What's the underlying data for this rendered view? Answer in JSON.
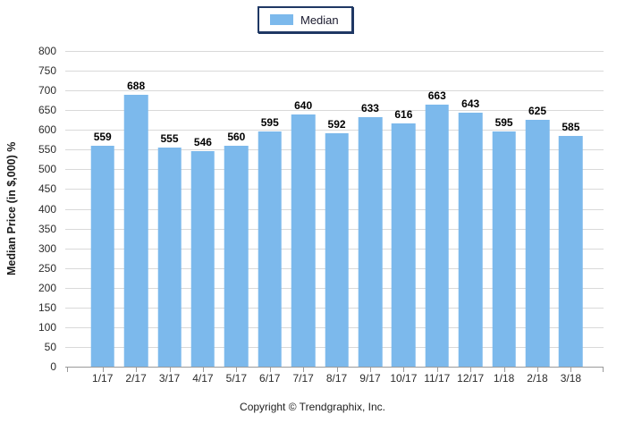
{
  "legend": {
    "label": "Median"
  },
  "footer": {
    "copyright": "Copyright © Trendgraphix, Inc."
  },
  "colors": {
    "bar": "#7CB9EC",
    "grid": "#D9D9D9",
    "axis": "#9A9A9A",
    "legend_border": "#1F3864",
    "tick_text": "#2B2B2B",
    "data_label_text": "#000000"
  },
  "chart_data": {
    "type": "bar",
    "title": "",
    "xlabel": "",
    "ylabel": "Median Price (in $,000) %",
    "categories": [
      "1/17",
      "2/17",
      "3/17",
      "4/17",
      "5/17",
      "6/17",
      "7/17",
      "8/17",
      "9/17",
      "10/17",
      "11/17",
      "12/17",
      "1/18",
      "2/18",
      "3/18"
    ],
    "series": [
      {
        "name": "Median",
        "values": [
          559,
          688,
          555,
          546,
          560,
          595,
          640,
          592,
          633,
          616,
          663,
          643,
          595,
          625,
          585
        ]
      }
    ],
    "ylim": [
      0,
      800
    ],
    "ytick_step": 50,
    "grid": true,
    "data_labels": true,
    "legend_position": "top-center"
  }
}
